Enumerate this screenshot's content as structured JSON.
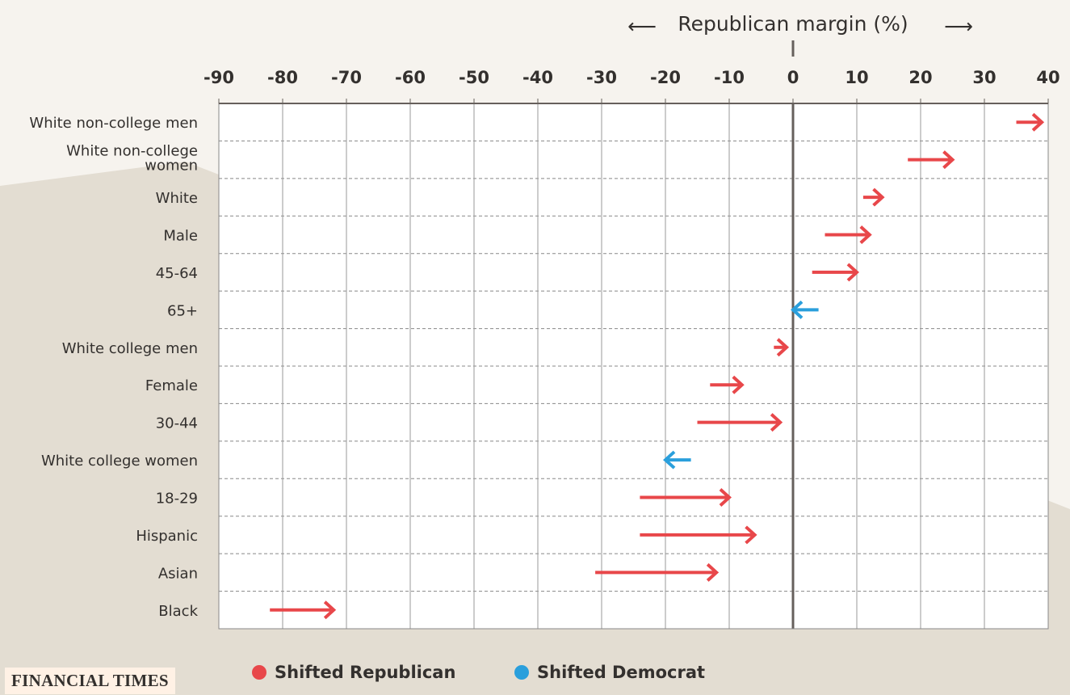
{
  "brand": "FINANCIAL TIMES",
  "colors": {
    "republican": "#e8474a",
    "democrat": "#2a9fdc",
    "plot_bg": "#ffffff",
    "page_bg_light": "#f6f3ee",
    "page_bg_dark": "#e3ddd2"
  },
  "legend": [
    {
      "name": "Shifted Republican",
      "color_key": "republican"
    },
    {
      "name": "Shifted Democrat",
      "color_key": "democrat"
    }
  ],
  "chart_data": {
    "type": "arrow-dot",
    "axis_title": "Republican margin (%)",
    "axis_arrow_left": "⟵",
    "axis_arrow_right": "⟶",
    "xlim": [
      -90,
      40
    ],
    "xticks": [
      -90,
      -80,
      -70,
      -60,
      -50,
      -40,
      -30,
      -20,
      -10,
      0,
      10,
      20,
      30,
      40
    ],
    "tick_labels": [
      "-90",
      "-80",
      "-70",
      "-60",
      "-50",
      "-40",
      "-30",
      "-20",
      "-10",
      "0",
      "10",
      "20",
      "30",
      "40"
    ],
    "grid": true,
    "rows": [
      {
        "label": "White non-college men",
        "from": 35,
        "to": 39,
        "shift": "republican"
      },
      {
        "label": "White non-college women",
        "from": 18,
        "to": 25,
        "shift": "republican"
      },
      {
        "label": "White",
        "from": 11,
        "to": 14,
        "shift": "republican"
      },
      {
        "label": "Male",
        "from": 5,
        "to": 12,
        "shift": "republican"
      },
      {
        "label": "45-64",
        "from": 3,
        "to": 10,
        "shift": "republican"
      },
      {
        "label": "65+",
        "from": 4,
        "to": 0,
        "shift": "democrat"
      },
      {
        "label": "White college men",
        "from": -3,
        "to": -1,
        "shift": "republican"
      },
      {
        "label": "Female",
        "from": -13,
        "to": -8,
        "shift": "republican"
      },
      {
        "label": "30-44",
        "from": -15,
        "to": -2,
        "shift": "republican"
      },
      {
        "label": "White college women",
        "from": -16,
        "to": -20,
        "shift": "democrat"
      },
      {
        "label": "18-29",
        "from": -24,
        "to": -10,
        "shift": "republican"
      },
      {
        "label": "Hispanic",
        "from": -24,
        "to": -6,
        "shift": "republican"
      },
      {
        "label": "Asian",
        "from": -31,
        "to": -12,
        "shift": "republican"
      },
      {
        "label": "Black",
        "from": -82,
        "to": -72,
        "shift": "republican"
      }
    ]
  }
}
